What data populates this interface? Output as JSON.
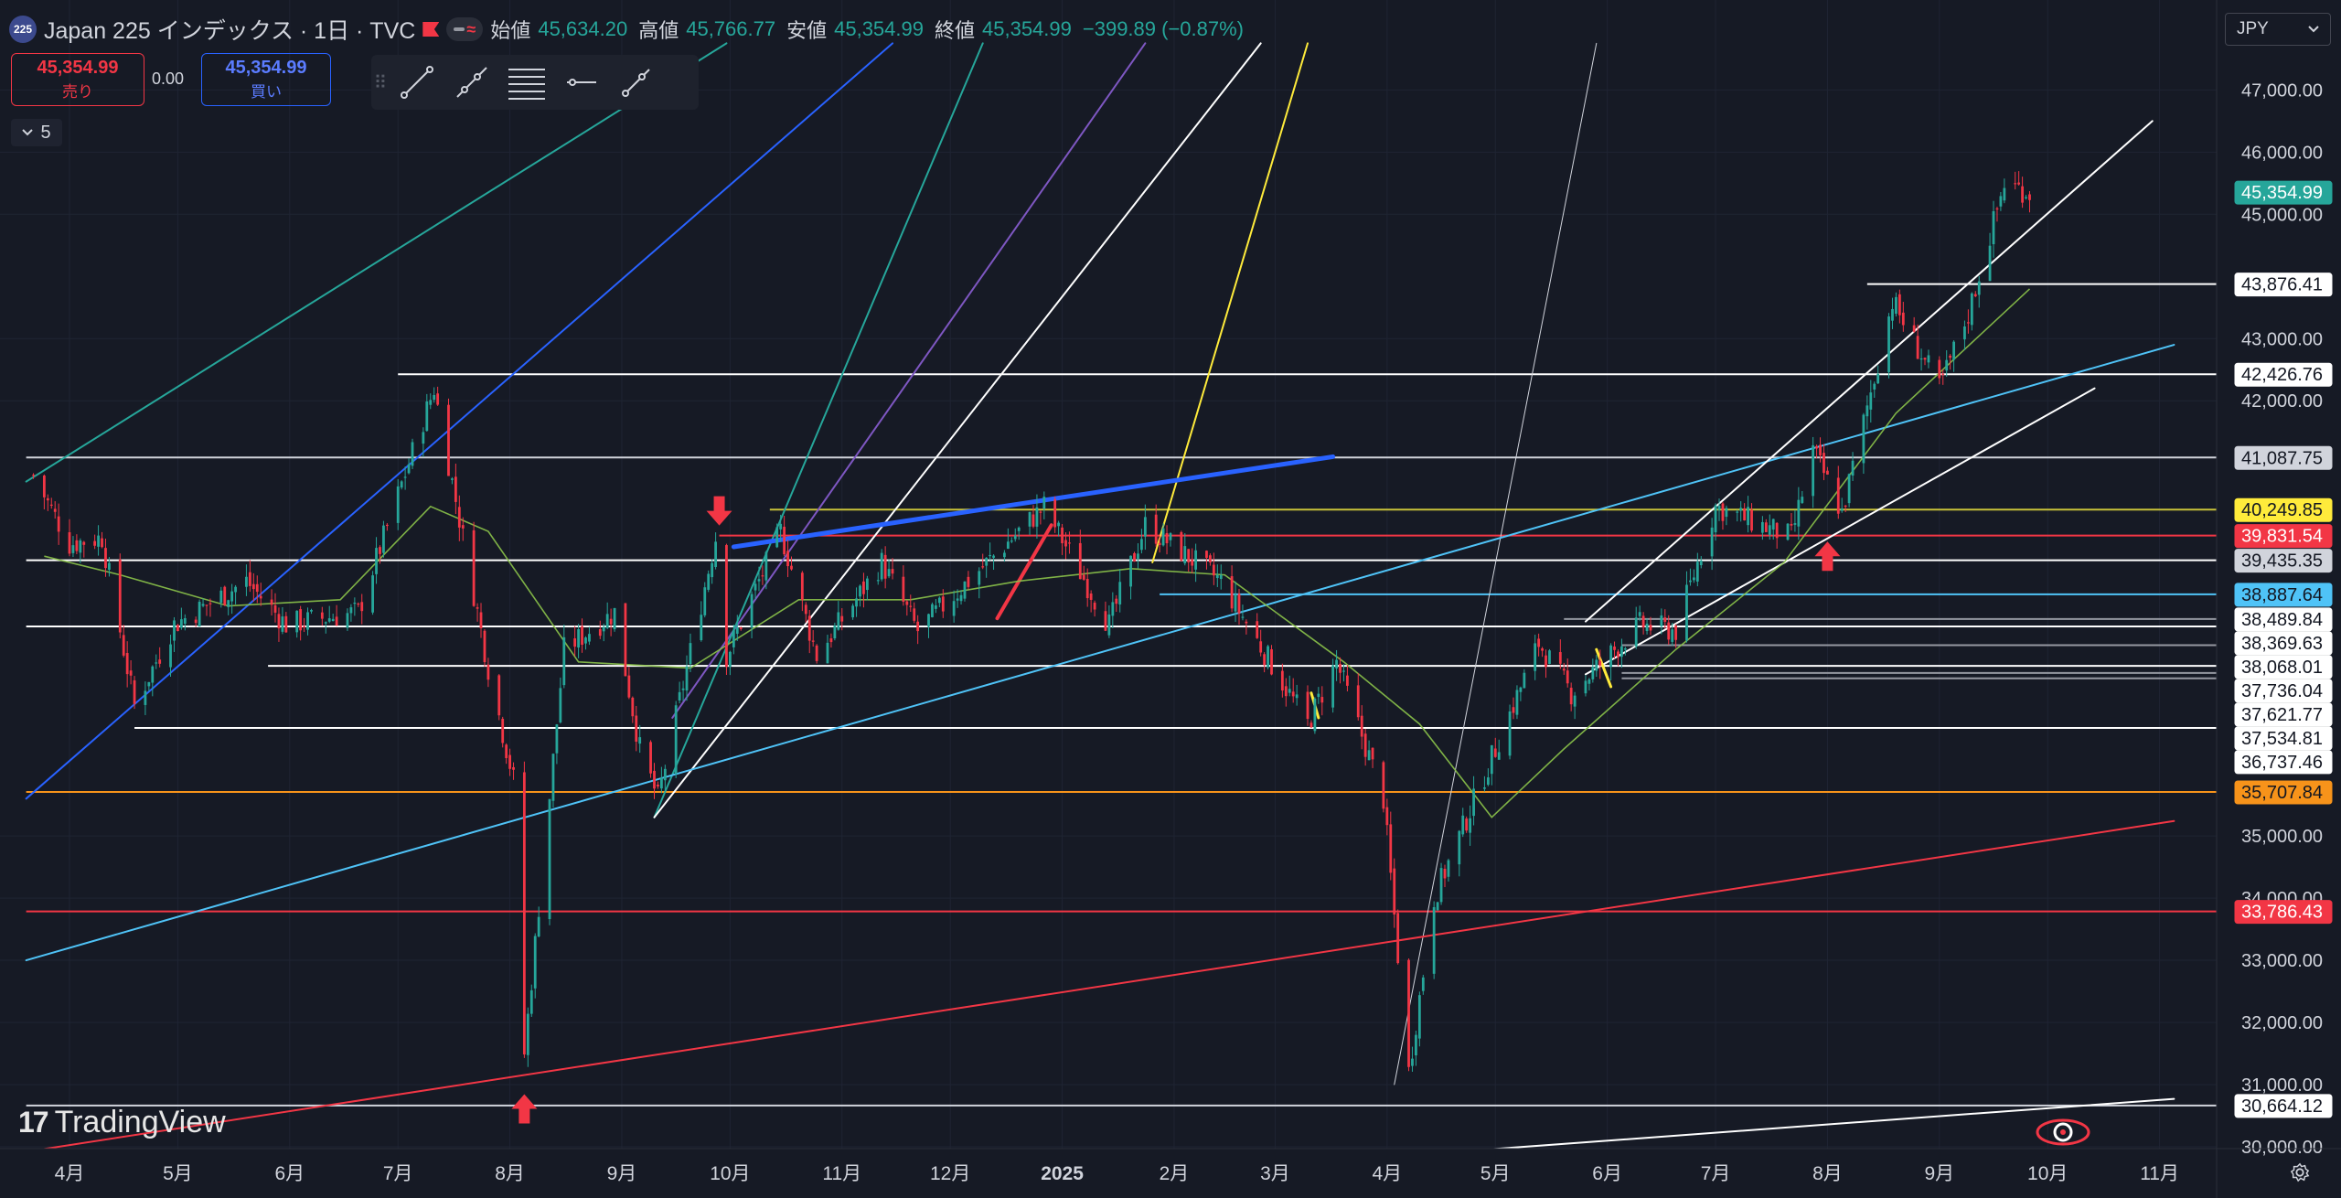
{
  "header": {
    "symbol_badge": "225",
    "title": "Japan 225 インデックス · 1日 · TVC",
    "open_label": "始値",
    "open": "45,634.20",
    "high_label": "高値",
    "high": "45,766.77",
    "low_label": "安値",
    "low": "45,354.99",
    "close_label": "終値",
    "close": "45,354.99",
    "change": "−399.89 (−0.87%)"
  },
  "trade": {
    "sell_price": "45,354.99",
    "sell_label": "売り",
    "spread": "0.00",
    "buy_price": "45,354.99",
    "buy_label": "買い"
  },
  "indicators_toggle": "5",
  "currency": "JPY",
  "logo": "TradingView",
  "colors": {
    "background": "#161a25",
    "up": "#26a69a",
    "down": "#f23645",
    "accent_blue": "#2962ff"
  },
  "icons": [
    "trend-line-icon",
    "ray-icon",
    "parallel-channel-icon",
    "horizontal-ray-icon",
    "info-line-icon",
    "settings-gear-icon",
    "chevron-down-icon",
    "flag-icon",
    "replay-icon"
  ],
  "chart_data": {
    "type": "candlestick",
    "x_ticks": [
      {
        "label": "4月",
        "date": "2024-04-01"
      },
      {
        "label": "5月",
        "date": "2024-05-01"
      },
      {
        "label": "6月",
        "date": "2024-06-01"
      },
      {
        "label": "7月",
        "date": "2024-07-01"
      },
      {
        "label": "8月",
        "date": "2024-08-01"
      },
      {
        "label": "9月",
        "date": "2024-09-01"
      },
      {
        "label": "10月",
        "date": "2024-10-01"
      },
      {
        "label": "11月",
        "date": "2024-11-01"
      },
      {
        "label": "12月",
        "date": "2024-12-01"
      },
      {
        "label": "2025",
        "date": "2025-01-01"
      },
      {
        "label": "2月",
        "date": "2025-02-01"
      },
      {
        "label": "3月",
        "date": "2025-03-01"
      },
      {
        "label": "4月",
        "date": "2025-04-01"
      },
      {
        "label": "5月",
        "date": "2025-05-01"
      },
      {
        "label": "6月",
        "date": "2025-06-01"
      },
      {
        "label": "7月",
        "date": "2025-07-01"
      },
      {
        "label": "8月",
        "date": "2025-08-01"
      },
      {
        "label": "9月",
        "date": "2025-09-01"
      },
      {
        "label": "10月",
        "date": "2025-10-01"
      },
      {
        "label": "11月",
        "date": "2025-11-01"
      }
    ],
    "y_ticks": [
      "47,000.00",
      "46,000.00",
      "45,000.00",
      "43,000.00",
      "42,000.00",
      "35,000.00",
      "34,000.00",
      "33,000.00",
      "32,000.00",
      "31,000.00",
      "30,000.00"
    ],
    "ylim": [
      30000,
      47700
    ],
    "price_path": [
      [
        "2024-03-22",
        40800
      ],
      [
        "2024-04-01",
        39700
      ],
      [
        "2024-04-10",
        39800
      ],
      [
        "2024-04-19",
        37100
      ],
      [
        "2024-04-30",
        38400
      ],
      [
        "2024-05-20",
        39100
      ],
      [
        "2024-05-31",
        38400
      ],
      [
        "2024-06-20",
        38600
      ],
      [
        "2024-07-11",
        42200
      ],
      [
        "2024-07-26",
        37700
      ],
      [
        "2024-08-02",
        35900
      ],
      [
        "2024-08-05",
        31500
      ],
      [
        "2024-08-16",
        38000
      ],
      [
        "2024-08-30",
        38600
      ],
      [
        "2024-09-06",
        36400
      ],
      [
        "2024-09-11",
        35600
      ],
      [
        "2024-09-27",
        39800
      ],
      [
        "2024-09-30",
        37900
      ],
      [
        "2024-10-15",
        39900
      ],
      [
        "2024-10-25",
        37900
      ],
      [
        "2024-11-12",
        39400
      ],
      [
        "2024-11-22",
        38300
      ],
      [
        "2024-12-27",
        40300
      ],
      [
        "2025-01-14",
        38400
      ],
      [
        "2025-01-24",
        40000
      ],
      [
        "2025-02-14",
        39100
      ],
      [
        "2025-03-10",
        36800
      ],
      [
        "2025-03-18",
        37800
      ],
      [
        "2025-03-31",
        35600
      ],
      [
        "2025-04-07",
        31200
      ],
      [
        "2025-04-14",
        34000
      ],
      [
        "2025-05-13",
        38100
      ],
      [
        "2025-05-22",
        37300
      ],
      [
        "2025-06-10",
        38400
      ],
      [
        "2025-06-20",
        38300
      ],
      [
        "2025-07-01",
        40300
      ],
      [
        "2025-07-22",
        39800
      ],
      [
        "2025-07-28",
        41200
      ],
      [
        "2025-08-05",
        40200
      ],
      [
        "2025-08-19",
        43600
      ],
      [
        "2025-09-01",
        42200
      ],
      [
        "2025-09-09",
        43400
      ],
      [
        "2025-09-19",
        45500
      ],
      [
        "2025-09-26",
        45355
      ]
    ],
    "moving_average": [
      [
        "2024-03-25",
        39500
      ],
      [
        "2024-04-15",
        39200
      ],
      [
        "2024-05-15",
        38700
      ],
      [
        "2024-06-15",
        38800
      ],
      [
        "2024-07-10",
        40300
      ],
      [
        "2024-07-26",
        39900
      ],
      [
        "2024-08-20",
        37800
      ],
      [
        "2024-09-20",
        37700
      ],
      [
        "2024-10-20",
        38800
      ],
      [
        "2024-11-20",
        38800
      ],
      [
        "2024-12-20",
        39100
      ],
      [
        "2025-01-20",
        39300
      ],
      [
        "2025-02-15",
        39200
      ],
      [
        "2025-03-20",
        37800
      ],
      [
        "2025-04-10",
        36800
      ],
      [
        "2025-04-30",
        35300
      ],
      [
        "2025-05-20",
        36400
      ],
      [
        "2025-06-20",
        38000
      ],
      [
        "2025-07-20",
        39400
      ],
      [
        "2025-08-20",
        41800
      ],
      [
        "2025-09-26",
        43800
      ]
    ],
    "price_levels": [
      {
        "label": "45,354.99",
        "value": 45354.99,
        "style": "teal-tag"
      },
      {
        "label": "43,876.41",
        "value": 43876.41,
        "style": "white-tag"
      },
      {
        "label": "42,426.76",
        "value": 42426.76,
        "style": "white-tag"
      },
      {
        "label": "41,087.75",
        "value": 41087.75,
        "style": "gray-tag"
      },
      {
        "label": "40,249.85",
        "value": 40249.85,
        "style": "yellow-tag"
      },
      {
        "label": "39,831.54",
        "value": 39831.54,
        "style": "red-tag"
      },
      {
        "label": "39,435.35",
        "value": 39435.35,
        "style": "gray-tag"
      },
      {
        "label": "38,887.64",
        "value": 38887.64,
        "style": "cyan-tag"
      },
      {
        "label": "38,489.84",
        "value": 38489.84,
        "style": "white-tag"
      },
      {
        "label": "38,369.63",
        "value": 38369.63,
        "style": "white-tag"
      },
      {
        "label": "38,068.01",
        "value": 38068.01,
        "style": "white-tag"
      },
      {
        "label": "37,736.04",
        "value": 37736.04,
        "style": "white-tag"
      },
      {
        "label": "37,621.77",
        "value": 37621.77,
        "style": "white-tag"
      },
      {
        "label": "37,534.81",
        "value": 37534.81,
        "style": "white-tag"
      },
      {
        "label": "36,737.46",
        "value": 36737.46,
        "style": "white-tag"
      },
      {
        "label": "35,707.84",
        "value": 35707.84,
        "style": "orange-tag"
      },
      {
        "label": "33,786.43",
        "value": 33786.43,
        "style": "red-tag"
      },
      {
        "label": "30,664.12",
        "value": 30664.12,
        "style": "white-tag"
      }
    ],
    "horizontal_lines": [
      {
        "value": 42426.76,
        "from": "2024-07-01",
        "color": "#ffffff"
      },
      {
        "value": 43876.41,
        "from": "2025-08-12",
        "color": "#ffffff"
      },
      {
        "value": 41087.75,
        "from": "2024-03-20",
        "color": "#d1d4dc"
      },
      {
        "value": 40249.85,
        "from": "2024-10-12",
        "color": "#c8c23a"
      },
      {
        "value": 39831.54,
        "from": "2024-09-28",
        "color": "#f23645"
      },
      {
        "value": 39435.35,
        "from": "2024-03-20",
        "color": "#ffffff"
      },
      {
        "value": 38887.64,
        "from": "2025-01-28",
        "color": "#4fc3f7"
      },
      {
        "value": 38489.84,
        "from": "2025-05-20",
        "color": "#9598a1"
      },
      {
        "value": 38369.63,
        "from": "2024-03-20",
        "color": "#ffffff"
      },
      {
        "value": 38068.01,
        "from": "2025-06-05",
        "color": "#9598a1"
      },
      {
        "value": 37736.04,
        "from": "2024-05-26",
        "color": "#ffffff"
      },
      {
        "value": 37621.77,
        "from": "2025-06-05",
        "color": "#9598a1"
      },
      {
        "value": 37534.81,
        "from": "2025-06-05",
        "color": "#9598a1"
      },
      {
        "value": 36737.46,
        "from": "2024-04-19",
        "color": "#ffffff"
      },
      {
        "value": 35707.84,
        "from": "2024-03-20",
        "color": "#f7931a"
      },
      {
        "value": 33786.43,
        "from": "2024-03-20",
        "color": "#f23645"
      },
      {
        "value": 30664.12,
        "from": "2024-03-20",
        "color": "#d1d4dc"
      }
    ],
    "trend_lines": [
      {
        "p1": [
          "2024-03-20",
          40700
        ],
        "p2": [
          "2024-09-30",
          47750
        ],
        "color": "#26a69a",
        "width": 2
      },
      {
        "p1": [
          "2024-03-20",
          35600
        ],
        "p2": [
          "2024-11-15",
          47750
        ],
        "color": "#2962ff",
        "width": 2
      },
      {
        "p1": [
          "2024-09-15",
          36900
        ],
        "p2": [
          "2025-01-24",
          47750
        ],
        "color": "#7e57c2",
        "width": 2
      },
      {
        "p1": [
          "2024-09-10",
          35300
        ],
        "p2": [
          "2024-12-10",
          47750
        ],
        "color": "#26a69a",
        "width": 2
      },
      {
        "p1": [
          "2025-01-26",
          39400
        ],
        "p2": [
          "2025-03-10",
          47750
        ],
        "color": "#ffeb3b",
        "width": 2
      },
      {
        "p1": [
          "2024-09-10",
          35300
        ],
        "p2": [
          "2025-02-25",
          47750
        ],
        "color": "#ffffff",
        "width": 2
      },
      {
        "p1": [
          "2025-04-03",
          31000
        ],
        "p2": [
          "2025-05-29",
          47750
        ],
        "color": "#d1d4dc",
        "width": 1
      },
      {
        "p1": [
          "2024-03-20",
          33000
        ],
        "p2": [
          "2025-11-05",
          42900
        ],
        "color": "#4fc3f7",
        "width": 2
      },
      {
        "p1": [
          "2024-03-20",
          29920
        ],
        "p2": [
          "2025-11-05",
          35240
        ],
        "color": "#f23645",
        "width": 2
      },
      {
        "p1": [
          "2025-04-25",
          29940
        ],
        "p2": [
          "2025-11-05",
          30770
        ],
        "color": "#ffffff",
        "width": 2
      },
      {
        "p1": [
          "2025-05-26",
          38450
        ],
        "p2": [
          "2025-10-30",
          46500
        ],
        "color": "#ffffff",
        "width": 2
      },
      {
        "p1": [
          "2025-05-26",
          37600
        ],
        "p2": [
          "2025-10-14",
          42200
        ],
        "color": "#ffffff",
        "width": 2
      },
      {
        "p1": [
          "2024-10-02",
          39650
        ],
        "p2": [
          "2025-03-17",
          41100
        ],
        "color": "#2962ff",
        "width": 5
      },
      {
        "p1": [
          "2024-12-14",
          38500
        ],
        "p2": [
          "2024-12-29",
          40000
        ],
        "color": "#f23645",
        "width": 4
      },
      {
        "p1": [
          "2025-05-29",
          38000
        ],
        "p2": [
          "2025-06-02",
          37400
        ],
        "color": "#ffeb3b",
        "width": 3
      },
      {
        "p1": [
          "2025-03-11",
          37300
        ],
        "p2": [
          "2025-03-13",
          36900
        ],
        "color": "#ffeb3b",
        "width": 3
      }
    ],
    "arrows": [
      {
        "date": "2024-08-05",
        "value": 30610,
        "direction": "up",
        "color": "#f23645"
      },
      {
        "date": "2024-09-28",
        "value": 40230,
        "direction": "down",
        "color": "#f23645"
      },
      {
        "date": "2025-08-01",
        "value": 39500,
        "direction": "up",
        "color": "#f23645"
      }
    ],
    "grid": true
  }
}
